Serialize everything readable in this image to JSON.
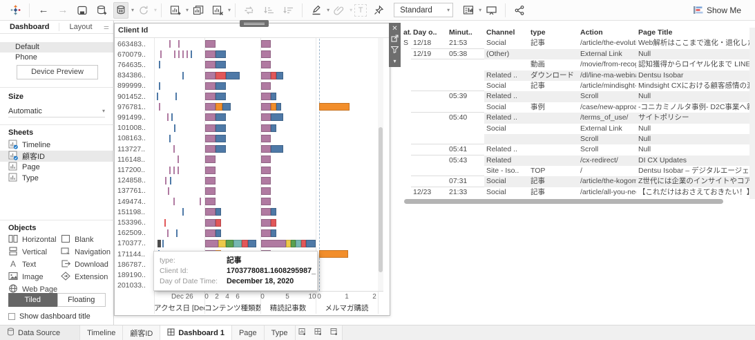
{
  "toolbar": {
    "fit_label": "Standard",
    "show_me_label": "Show Me",
    "icons": [
      "tableau-logo",
      "undo-icon",
      "redo-icon",
      "save-icon",
      "add-data-icon",
      "pause-updates-icon",
      "refresh-icon",
      "new-worksheet-icon",
      "duplicate-icon",
      "clear-sheet-icon",
      "swap-axes-icon",
      "sort-asc-icon",
      "sort-desc-icon",
      "highlight-icon",
      "attach-icon",
      "text-label-icon",
      "pin-icon",
      "show-labels-icon",
      "presentation-icon",
      "share-icon"
    ]
  },
  "left_panel": {
    "tabs": {
      "dashboard": "Dashboard",
      "layout": "Layout"
    },
    "devices": [
      {
        "label": "Default",
        "selected": true
      },
      {
        "label": "Phone",
        "selected": false
      }
    ],
    "device_preview_label": "Device Preview",
    "size_label": "Size",
    "size_value": "Automatic",
    "sheets_label": "Sheets",
    "sheets": [
      {
        "name": "Timeline",
        "used": true,
        "selected": false
      },
      {
        "name": "顧客ID",
        "used": true,
        "selected": true
      },
      {
        "name": "Page",
        "used": false,
        "selected": false
      },
      {
        "name": "Type",
        "used": false,
        "selected": false
      }
    ],
    "objects_label": "Objects",
    "objects": [
      "Horizontal",
      "Blank",
      "Vertical",
      "Navigation",
      "Text",
      "Download",
      "Image",
      "Extension",
      "Web Page"
    ],
    "tiled_label": "Tiled",
    "floating_label": "Floating",
    "show_title_label": "Show dashboard title"
  },
  "tooltip": {
    "rows": [
      {
        "label": "type:",
        "value": "記事"
      },
      {
        "label": "Client Id:",
        "value": "1703778081.1608295987_"
      },
      {
        "label": "Day of Date Time:",
        "value": "December 18, 2020"
      }
    ]
  },
  "chart_data": {
    "type": "bar",
    "row_header": "Client Id",
    "palette": {
      "p": "#b07aa1",
      "b": "#4e79a7",
      "r": "#e15759",
      "o": "#f28e2b",
      "y": "#edc949",
      "g": "#59a14f",
      "t": "#76b7b2",
      "d": "#4d4d4d"
    },
    "panels": [
      {
        "key": "timeline",
        "label": "アクセス日 [Dece..",
        "axis_ticks": [
          "Dec 26"
        ]
      },
      {
        "key": "content_types",
        "label": "コンテンツ種類数",
        "axis_ticks": [
          0,
          2,
          4,
          6
        ]
      },
      {
        "key": "read_articles",
        "label": "精読記事数",
        "axis_ticks": [
          0,
          5,
          10
        ]
      },
      {
        "key": "newsletter",
        "label": "メルマガ購読",
        "axis_ticks": [
          0,
          1,
          2
        ]
      }
    ],
    "rows": [
      {
        "id": "663483..",
        "timeline": [
          [
            0.3,
            "p"
          ],
          [
            0.48,
            "p"
          ]
        ],
        "content_types": [
          [
            "p",
            2
          ]
        ],
        "read_articles": [
          [
            "p",
            2
          ]
        ],
        "newsletter": []
      },
      {
        "id": "670079..",
        "timeline": [
          [
            0.12,
            "p"
          ],
          [
            0.4,
            "p"
          ],
          [
            0.48,
            "p"
          ],
          [
            0.56,
            "p"
          ],
          [
            0.64,
            "p"
          ],
          [
            0.72,
            "b"
          ]
        ],
        "content_types": [
          [
            "p",
            2
          ],
          [
            "b",
            2
          ]
        ],
        "read_articles": [
          [
            "p",
            2
          ]
        ],
        "newsletter": []
      },
      {
        "id": "764635..",
        "timeline": [
          [
            0.1,
            "b"
          ]
        ],
        "content_types": [
          [
            "p",
            2
          ],
          [
            "b",
            2
          ]
        ],
        "read_articles": [
          [
            "p",
            2
          ]
        ],
        "newsletter": []
      },
      {
        "id": "834386..",
        "timeline": [
          [
            0.56,
            "b"
          ]
        ],
        "content_types": [
          [
            "p",
            2
          ],
          [
            "r",
            2
          ],
          [
            "b",
            2.6
          ]
        ],
        "read_articles": [
          [
            "p",
            2
          ],
          [
            "r",
            1
          ],
          [
            "b",
            1.5
          ]
        ],
        "newsletter": []
      },
      {
        "id": "899999..",
        "timeline": [
          [
            0.1,
            "b"
          ]
        ],
        "content_types": [
          [
            "p",
            2
          ],
          [
            "b",
            2
          ]
        ],
        "read_articles": [
          [
            "p",
            2
          ]
        ],
        "newsletter": []
      },
      {
        "id": "901452..",
        "timeline": [
          [
            0.05,
            "b"
          ],
          [
            0.42,
            "b"
          ]
        ],
        "content_types": [
          [
            "p",
            2
          ],
          [
            "b",
            2
          ]
        ],
        "read_articles": [
          [
            "p",
            2
          ],
          [
            "b",
            1
          ]
        ],
        "newsletter": []
      },
      {
        "id": "976781..",
        "timeline": [
          [
            0.1,
            "p"
          ]
        ],
        "content_types": [
          [
            "p",
            2
          ],
          [
            "o",
            1.3
          ],
          [
            "b",
            1.6
          ]
        ],
        "read_articles": [
          [
            "p",
            2
          ],
          [
            "o",
            1
          ],
          [
            "b",
            1
          ]
        ],
        "newsletter": [
          [
            "o",
            1.1
          ]
        ]
      },
      {
        "id": "991499..",
        "timeline": [
          [
            0.26,
            "p"
          ],
          [
            0.34,
            "b"
          ]
        ],
        "content_types": [
          [
            "p",
            2
          ],
          [
            "b",
            2
          ]
        ],
        "read_articles": [
          [
            "p",
            2
          ],
          [
            "b",
            2.5
          ]
        ],
        "newsletter": []
      },
      {
        "id": "101008..",
        "timeline": [
          [
            0.4,
            "b"
          ]
        ],
        "content_types": [
          [
            "p",
            2
          ],
          [
            "b",
            2
          ]
        ],
        "read_articles": [
          [
            "p",
            2
          ],
          [
            "b",
            1
          ]
        ],
        "newsletter": []
      },
      {
        "id": "108163..",
        "timeline": [
          [
            0.3,
            "b"
          ]
        ],
        "content_types": [
          [
            "p",
            2
          ],
          [
            "b",
            2
          ]
        ],
        "read_articles": [
          [
            "p",
            2
          ]
        ],
        "newsletter": []
      },
      {
        "id": "113727..",
        "timeline": [
          [
            0.38,
            "p"
          ]
        ],
        "content_types": [
          [
            "p",
            2
          ],
          [
            "b",
            2
          ]
        ],
        "read_articles": [
          [
            "p",
            2
          ],
          [
            "b",
            2.5
          ]
        ],
        "newsletter": []
      },
      {
        "id": "116148..",
        "timeline": [
          [
            0.46,
            "p"
          ]
        ],
        "content_types": [
          [
            "p",
            2
          ]
        ],
        "read_articles": [
          [
            "p",
            2
          ]
        ],
        "newsletter": []
      },
      {
        "id": "117200..",
        "timeline": [
          [
            0.3,
            "p"
          ],
          [
            0.38,
            "p"
          ],
          [
            0.46,
            "p"
          ]
        ],
        "content_types": [
          [
            "p",
            2
          ]
        ],
        "read_articles": [
          [
            "p",
            2
          ]
        ],
        "newsletter": []
      },
      {
        "id": "124858..",
        "timeline": [
          [
            0.22,
            "p"
          ],
          [
            0.32,
            "b"
          ]
        ],
        "content_types": [
          [
            "p",
            2
          ]
        ],
        "read_articles": [
          [
            "p",
            2
          ]
        ],
        "newsletter": []
      },
      {
        "id": "137761..",
        "timeline": [
          [
            0.28,
            "p"
          ]
        ],
        "content_types": [
          [
            "p",
            2
          ]
        ],
        "read_articles": [
          [
            "p",
            2
          ]
        ],
        "newsletter": []
      },
      {
        "id": "149474..",
        "timeline": [
          [
            0.38,
            "p"
          ],
          [
            0.9,
            "p"
          ]
        ],
        "content_types": [
          [
            "p",
            2
          ]
        ],
        "read_articles": [
          [
            "p",
            2
          ]
        ],
        "newsletter": []
      },
      {
        "id": "151198..",
        "timeline": [
          [
            0.56,
            "b"
          ]
        ],
        "content_types": [
          [
            "p",
            2
          ],
          [
            "b",
            1
          ]
        ],
        "read_articles": [
          [
            "p",
            2
          ],
          [
            "b",
            1
          ]
        ],
        "newsletter": []
      },
      {
        "id": "153396..",
        "timeline": [
          [
            0.2,
            "r"
          ]
        ],
        "content_types": [
          [
            "p",
            2
          ],
          [
            "r",
            1
          ]
        ],
        "read_articles": [
          [
            "p",
            2
          ],
          [
            "r",
            1
          ]
        ],
        "newsletter": []
      },
      {
        "id": "162509..",
        "timeline": [
          [
            0.26,
            "p"
          ],
          [
            0.44,
            "b"
          ]
        ],
        "content_types": [
          [
            "p",
            2
          ],
          [
            "b",
            1
          ]
        ],
        "read_articles": [
          [
            "p",
            2
          ],
          [
            "b",
            1
          ]
        ],
        "newsletter": []
      },
      {
        "id": "170377..",
        "timeline": [
          [
            0.07,
            "d"
          ],
          [
            0.16,
            "b"
          ]
        ],
        "content_types": [
          [
            "p",
            2.5
          ],
          [
            "y",
            1.5
          ],
          [
            "g",
            1.5
          ],
          [
            "t",
            1.5
          ],
          [
            "r",
            1.2
          ],
          [
            "b",
            1.6
          ]
        ],
        "read_articles": [
          [
            "p",
            5
          ],
          [
            "y",
            1
          ],
          [
            "g",
            1
          ],
          [
            "t",
            1
          ],
          [
            "r",
            1
          ],
          [
            "b",
            2
          ]
        ],
        "newsletter": []
      },
      {
        "id": "171144..",
        "timeline": [
          [
            0.08,
            "b"
          ]
        ],
        "content_types": [
          [
            "p",
            2
          ],
          [
            "o",
            1
          ]
        ],
        "read_articles": [
          [
            "p",
            2
          ]
        ],
        "newsletter": [
          [
            "o",
            1.05
          ]
        ]
      },
      {
        "id": "186787..",
        "timeline": [
          [
            0.05,
            "p"
          ],
          [
            0.11,
            "p"
          ],
          [
            0.17,
            "p"
          ],
          [
            0.23,
            "p"
          ],
          [
            0.3,
            "b"
          ]
        ],
        "content_types": [
          [
            "p",
            2
          ]
        ],
        "read_articles": [
          [
            "p",
            6
          ],
          [
            "r",
            1
          ],
          [
            "b",
            1.5
          ]
        ],
        "newsletter": []
      },
      {
        "id": "189190..",
        "timeline": [
          [
            0.1,
            "b"
          ]
        ],
        "content_types": [
          [
            "p",
            2
          ]
        ],
        "read_articles": [
          [
            "p",
            2
          ],
          [
            "b",
            1
          ]
        ],
        "newsletter": []
      },
      {
        "id": "201033..",
        "timeline": [],
        "content_types": [],
        "read_articles": [
          [
            "p",
            2
          ]
        ],
        "newsletter": []
      }
    ]
  },
  "table": {
    "headers": [
      "at..",
      "Day o..",
      "Minut..",
      "Channel",
      "type",
      "Action",
      "Page Title"
    ],
    "rows": [
      {
        "cells": [
          "S",
          "12/18",
          "21:53",
          "Social",
          "記事",
          "/article/the-evoluti..",
          "Web解析はここまで進化・退化した ～CXと.."
        ],
        "band": false,
        "grp": true
      },
      {
        "cells": [
          "",
          "12/19",
          "05:38",
          "(Other)",
          "",
          "External Link",
          "Null"
        ],
        "band": true,
        "grp": true
      },
      {
        "cells": [
          "",
          "",
          "",
          "",
          "動画",
          "/movie/from-recog..",
          "認知獲得からロイヤル化まで LINE×MA ＋ 良.."
        ],
        "band": false,
        "grp": false
      },
      {
        "cells": [
          "",
          "",
          "",
          "Related ..",
          "ダウンロード",
          "/dl/line-ma-webinar",
          "Dentsu Isobar"
        ],
        "band": true,
        "grp": false
      },
      {
        "cells": [
          "",
          "",
          "",
          "Social",
          "記事",
          "/article/mindisght-..",
          "Mindsight CXにおける顧客感情の測定"
        ],
        "band": false,
        "grp": true
      },
      {
        "cells": [
          "",
          "",
          "05:39",
          "Related ..",
          "",
          "Scroll",
          "Null"
        ],
        "band": true,
        "grp": false
      },
      {
        "cells": [
          "",
          "",
          "",
          "Social",
          "事例",
          "/case/new-approac..",
          "-コニカミノルタ事例- D2C事業へ新アプロー.."
        ],
        "band": false,
        "grp": true
      },
      {
        "cells": [
          "",
          "",
          "05:40",
          "Related ..",
          "",
          "/terms_of_use/",
          "サイトポリシー"
        ],
        "band": true,
        "grp": false
      },
      {
        "cells": [
          "",
          "",
          "",
          "Social",
          "",
          "External Link",
          "Null"
        ],
        "band": false,
        "grp": false
      },
      {
        "cells": [
          "",
          "",
          "",
          "",
          "",
          "Scroll",
          "Null"
        ],
        "band": true,
        "grp": true
      },
      {
        "cells": [
          "",
          "",
          "05:41",
          "Related ..",
          "",
          "Scroll",
          "Null"
        ],
        "band": false,
        "grp": true
      },
      {
        "cells": [
          "",
          "",
          "05:43",
          "Related",
          "",
          "/cx-redirect/",
          "DI CX Updates"
        ],
        "band": true,
        "grp": false
      },
      {
        "cells": [
          "",
          "",
          "",
          "Site - Iso..",
          "TOP",
          "/",
          "Dentsu Isobar – デジタルエージェンシー"
        ],
        "band": false,
        "grp": true
      },
      {
        "cells": [
          "",
          "",
          "07:31",
          "Social",
          "記事",
          "/article/the-kogom..",
          "Z世代には企業のインサイトやコアアイデア.."
        ],
        "band": true,
        "grp": true
      },
      {
        "cells": [
          "",
          "12/23",
          "21:33",
          "Social",
          "記事",
          "/article/all-you-nee..",
          "【これだけはおさえておきたい！】SEO編"
        ],
        "band": false,
        "grp": false
      }
    ]
  },
  "bottom_bar": {
    "tabs": [
      {
        "label": "Data Source",
        "kind": "datasource",
        "active": false
      },
      {
        "label": "Timeline",
        "kind": "sheet",
        "active": false
      },
      {
        "label": "顧客ID",
        "kind": "sheet",
        "active": false
      },
      {
        "label": "Dashboard 1",
        "kind": "dashboard",
        "active": true
      },
      {
        "label": "Page",
        "kind": "sheet",
        "active": false
      },
      {
        "label": "Type",
        "kind": "sheet",
        "active": false
      }
    ],
    "new_icons": [
      "new-worksheet-tab-icon",
      "new-dashboard-tab-icon",
      "new-story-tab-icon"
    ]
  }
}
